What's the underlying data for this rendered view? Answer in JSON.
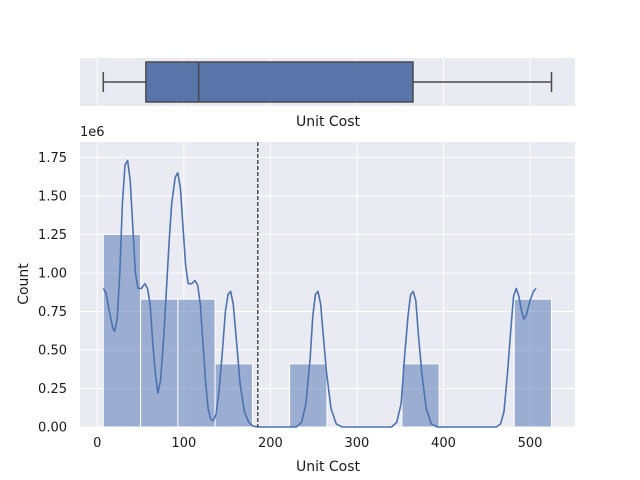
{
  "chart_data": [
    {
      "type": "box",
      "xlabel": "Unit Cost",
      "min": 6.92,
      "q1": 56.12,
      "median": 117.11,
      "q3": 364.79,
      "max": 524.86,
      "xlim": [
        -20,
        552
      ],
      "box_color": "#5874a9",
      "grid": true
    },
    {
      "type": "histogram",
      "xlabel": "Unit Cost",
      "ylabel": "Count",
      "y_offset_label": "1e6",
      "xlim": [
        -20,
        552
      ],
      "ylim": [
        0,
        1.85
      ],
      "x_ticks": [
        0,
        100,
        200,
        300,
        400,
        500
      ],
      "y_ticks": [
        "0.00",
        "0.25",
        "0.50",
        "0.75",
        "1.00",
        "1.25",
        "1.50",
        "1.75"
      ],
      "bins": [
        {
          "x0": 6.92,
          "x1": 50.0,
          "count": 1.25
        },
        {
          "x0": 50.0,
          "x1": 93.1,
          "count": 0.83
        },
        {
          "x0": 93.1,
          "x1": 136.1,
          "count": 0.83
        },
        {
          "x0": 136.1,
          "x1": 179.3,
          "count": 0.41
        },
        {
          "x0": 222.2,
          "x1": 265.3,
          "count": 0.41
        },
        {
          "x0": 352.0,
          "x1": 395.0,
          "count": 0.41
        },
        {
          "x0": 481.8,
          "x1": 524.86,
          "count": 0.83
        }
      ],
      "kde": [
        [
          6.92,
          0.9
        ],
        [
          10,
          0.87
        ],
        [
          14,
          0.75
        ],
        [
          18,
          0.64
        ],
        [
          20,
          0.62
        ],
        [
          23,
          0.7
        ],
        [
          26,
          1.0
        ],
        [
          29,
          1.45
        ],
        [
          32,
          1.7
        ],
        [
          35,
          1.73
        ],
        [
          38,
          1.6
        ],
        [
          41,
          1.3
        ],
        [
          44,
          1.0
        ],
        [
          47,
          0.9
        ],
        [
          51,
          0.9
        ],
        [
          55,
          0.93
        ],
        [
          58,
          0.9
        ],
        [
          61,
          0.8
        ],
        [
          64,
          0.55
        ],
        [
          67,
          0.35
        ],
        [
          70,
          0.22
        ],
        [
          73,
          0.3
        ],
        [
          77,
          0.6
        ],
        [
          80,
          0.9
        ],
        [
          83,
          1.2
        ],
        [
          86,
          1.45
        ],
        [
          90,
          1.62
        ],
        [
          93,
          1.65
        ],
        [
          96,
          1.55
        ],
        [
          99,
          1.3
        ],
        [
          102,
          1.05
        ],
        [
          105,
          0.93
        ],
        [
          109,
          0.93
        ],
        [
          113,
          0.95
        ],
        [
          116,
          0.92
        ],
        [
          119,
          0.8
        ],
        [
          122,
          0.55
        ],
        [
          125,
          0.3
        ],
        [
          128,
          0.12
        ],
        [
          131,
          0.05
        ],
        [
          134,
          0.04
        ],
        [
          137,
          0.08
        ],
        [
          140,
          0.2
        ],
        [
          144,
          0.45
        ],
        [
          148,
          0.75
        ],
        [
          151,
          0.86
        ],
        [
          154,
          0.88
        ],
        [
          157,
          0.8
        ],
        [
          161,
          0.55
        ],
        [
          165,
          0.28
        ],
        [
          170,
          0.1
        ],
        [
          175,
          0.03
        ],
        [
          180,
          0.005
        ],
        [
          186,
          0.0
        ],
        [
          230,
          0.0
        ],
        [
          236,
          0.03
        ],
        [
          241,
          0.15
        ],
        [
          246,
          0.45
        ],
        [
          249,
          0.72
        ],
        [
          252,
          0.86
        ],
        [
          255,
          0.88
        ],
        [
          258,
          0.8
        ],
        [
          261,
          0.6
        ],
        [
          265,
          0.35
        ],
        [
          270,
          0.12
        ],
        [
          276,
          0.02
        ],
        [
          283,
          0.0
        ],
        [
          340,
          0.0
        ],
        [
          346,
          0.03
        ],
        [
          351,
          0.15
        ],
        [
          355,
          0.45
        ],
        [
          359,
          0.72
        ],
        [
          362,
          0.86
        ],
        [
          365,
          0.88
        ],
        [
          368,
          0.82
        ],
        [
          371,
          0.6
        ],
        [
          375,
          0.35
        ],
        [
          380,
          0.12
        ],
        [
          386,
          0.02
        ],
        [
          393,
          0.0
        ],
        [
          461,
          0.0
        ],
        [
          466,
          0.02
        ],
        [
          470,
          0.1
        ],
        [
          474,
          0.35
        ],
        [
          478,
          0.65
        ],
        [
          481,
          0.85
        ],
        [
          484,
          0.9
        ],
        [
          487,
          0.85
        ],
        [
          490,
          0.76
        ],
        [
          493,
          0.7
        ],
        [
          496,
          0.73
        ],
        [
          500,
          0.82
        ],
        [
          504,
          0.88
        ],
        [
          507,
          0.9
        ]
      ],
      "mean_line": 185.5,
      "bar_color": "#4c72b0",
      "line_color": "#4c72b0",
      "grid": true
    }
  ]
}
